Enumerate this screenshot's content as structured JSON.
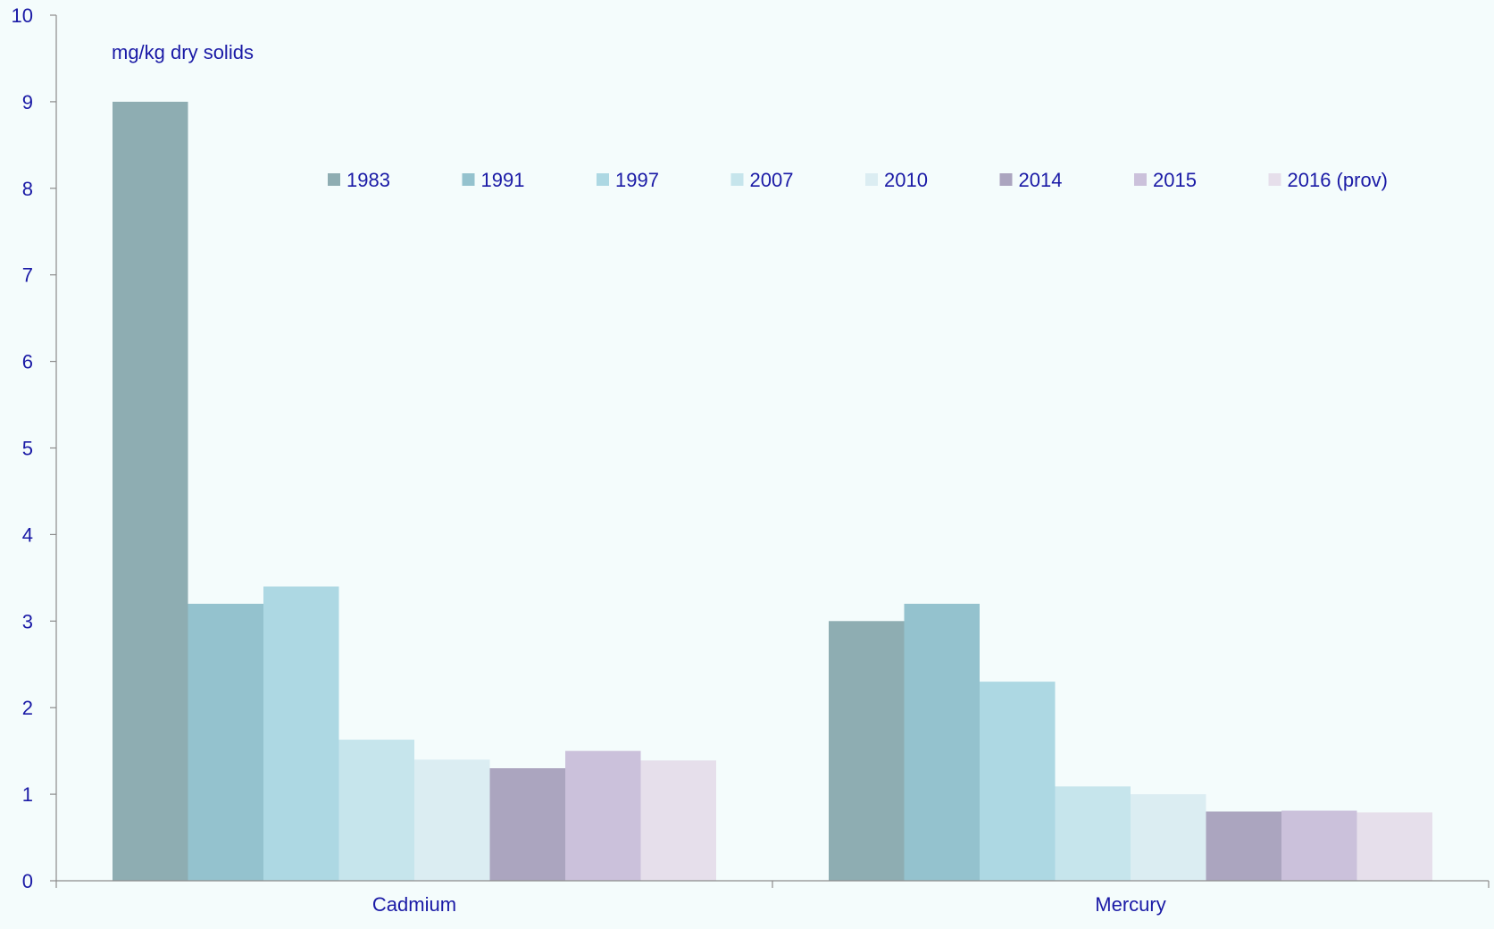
{
  "chart_data": {
    "type": "bar",
    "title": "",
    "xlabel": "",
    "ylabel": "mg/kg dry solids",
    "ylim": [
      0,
      10
    ],
    "yticks": [
      "0",
      "1",
      "2",
      "3",
      "4",
      "5",
      "6",
      "7",
      "8",
      "9",
      "10"
    ],
    "categories": [
      "Cadmium",
      "Mercury"
    ],
    "series": [
      {
        "name": "1983",
        "color": "#8ead b2",
        "values": [
          9.0,
          3.0
        ]
      },
      {
        "name": "1991",
        "color": "#94c2ce",
        "values": [
          3.2,
          3.2
        ]
      },
      {
        "name": "1997",
        "color": "#add8e3",
        "values": [
          3.4,
          2.3
        ]
      },
      {
        "name": "2007",
        "color": "#c6e5ec",
        "values": [
          1.63,
          1.09
        ]
      },
      {
        "name": "2010",
        "color": "#dbedf2",
        "values": [
          1.4,
          1.0
        ]
      },
      {
        "name": "2014",
        "color": "#aba5bf",
        "values": [
          1.3,
          0.8
        ]
      },
      {
        "name": "2015",
        "color": "#cbc1db",
        "values": [
          1.5,
          0.81
        ]
      },
      {
        "name": "2016 (prov)",
        "color": "#e6dfeb",
        "values": [
          1.39,
          0.79
        ]
      }
    ],
    "grid": false,
    "legend": "top"
  }
}
